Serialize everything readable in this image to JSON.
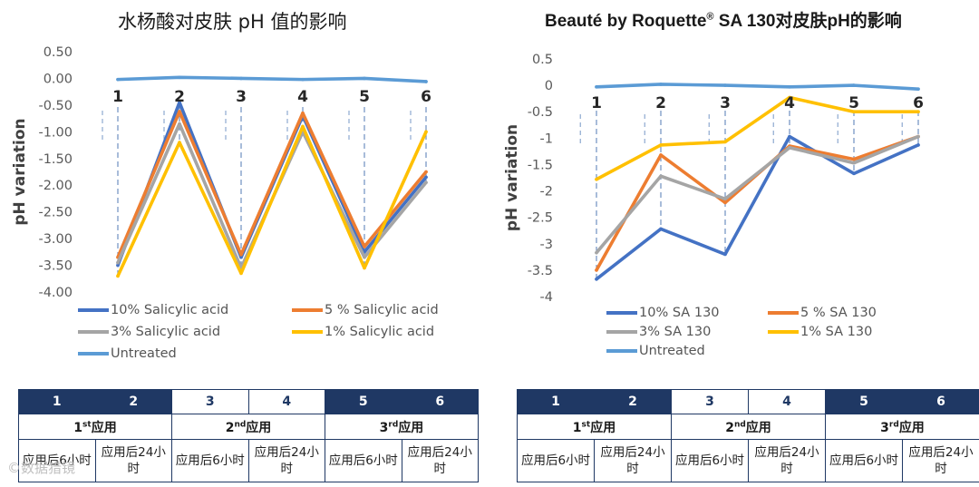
{
  "chart_data": [
    {
      "type": "line",
      "title": "水杨酸对皮肤 pH 值的影响",
      "ylabel": "pH variation",
      "xlabel": "",
      "categories": [
        "1",
        "2",
        "3",
        "4",
        "5",
        "6"
      ],
      "ylim": [
        -4.0,
        0.5
      ],
      "yticks": [
        "0.50",
        "0.00",
        "-0.50",
        "-1.00",
        "-1.50",
        "-2.00",
        "-2.50",
        "-3.00",
        "-3.50",
        "-4.00"
      ],
      "ytick_values": [
        0.5,
        0,
        -0.5,
        -1,
        -1.5,
        -2,
        -2.5,
        -3,
        -3.5,
        -4
      ],
      "grid": false,
      "legend": "bottom",
      "series": [
        {
          "name": "Untreated",
          "color": "#5b9bd5",
          "values": [
            -0.02,
            0.02,
            0.0,
            -0.02,
            0.0,
            -0.06
          ]
        },
        {
          "name": "10% Salicylic acid",
          "color": "#4472c4",
          "values": [
            -3.5,
            -0.45,
            -3.35,
            -0.7,
            -3.25,
            -1.85
          ]
        },
        {
          "name": "5 % Salicylic acid",
          "color": "#ed7d31",
          "values": [
            -3.35,
            -0.62,
            -3.3,
            -0.65,
            -3.15,
            -1.75
          ]
        },
        {
          "name": "3% Salicylic acid",
          "color": "#a5a5a5",
          "values": [
            -3.45,
            -0.85,
            -3.55,
            -1.0,
            -3.35,
            -1.95
          ]
        },
        {
          "name": "1% Salicylic acid",
          "color": "#ffc000",
          "values": [
            -3.7,
            -1.2,
            -3.65,
            -0.9,
            -3.55,
            -1.0
          ]
        }
      ]
    },
    {
      "type": "line",
      "title": "Beauté by Roquette",
      "title_reg": "®",
      "title_rest": " SA 130对皮肤pH的影响",
      "ylabel": "pH variation",
      "xlabel": "",
      "categories": [
        "1",
        "2",
        "3",
        "4",
        "5",
        "6"
      ],
      "ylim": [
        -4,
        0.5
      ],
      "yticks": [
        "0.5",
        "0",
        "-0.5",
        "-1",
        "-1.5",
        "-2",
        "-2.5",
        "-3",
        "-3.5",
        "-4"
      ],
      "ytick_values": [
        0.5,
        0,
        -0.5,
        -1,
        -1.5,
        -2,
        -2.5,
        -3,
        -3.5,
        -4
      ],
      "grid": false,
      "legend": "bottom",
      "series": [
        {
          "name": "Untreated",
          "color": "#5b9bd5",
          "values": [
            -0.03,
            0.02,
            0.0,
            -0.03,
            0.0,
            -0.07
          ]
        },
        {
          "name": "10% SA 130",
          "color": "#4472c4",
          "values": [
            -3.67,
            -2.72,
            -3.2,
            -0.97,
            -1.67,
            -1.13
          ]
        },
        {
          "name": "5 % SA 130",
          "color": "#ed7d31",
          "values": [
            -3.5,
            -1.32,
            -2.22,
            -1.15,
            -1.4,
            -0.97
          ]
        },
        {
          "name": "3% SA 130",
          "color": "#a5a5a5",
          "values": [
            -3.17,
            -1.72,
            -2.15,
            -1.18,
            -1.47,
            -0.97
          ]
        },
        {
          "name": "1% SA 130",
          "color": "#ffc000",
          "values": [
            -1.78,
            -1.13,
            -1.07,
            -0.23,
            -0.5,
            -0.5
          ]
        }
      ]
    }
  ],
  "left_legend": [
    "10% Salicylic acid",
    "5 % Salicylic acid",
    "3% Salicylic acid",
    "1% Salicylic acid",
    "Untreated"
  ],
  "right_legend": [
    "10% SA 130",
    "5 % SA 130",
    "3% SA 130",
    "1% SA 130",
    "Untreated"
  ],
  "table": {
    "numbers": [
      "1",
      "2",
      "3",
      "4",
      "5",
      "6"
    ],
    "applications": [
      {
        "ord": "1",
        "sup": "st",
        "word": "应用"
      },
      {
        "ord": "2",
        "sup": "nd",
        "word": "应用"
      },
      {
        "ord": "3",
        "sup": "rd",
        "word": "应用"
      }
    ],
    "times_left": [
      "应用后6小时",
      "应用后24小时",
      "应用后6小时",
      "应用后24小时",
      "应用后6小时",
      "应用后24小时"
    ],
    "times_right": [
      "应用后6小时",
      "应用后24小时",
      "应用后6小时",
      "应用后24小时",
      "应用后6小时",
      "应用后24小时"
    ]
  },
  "watermark": "©数据猎镜"
}
